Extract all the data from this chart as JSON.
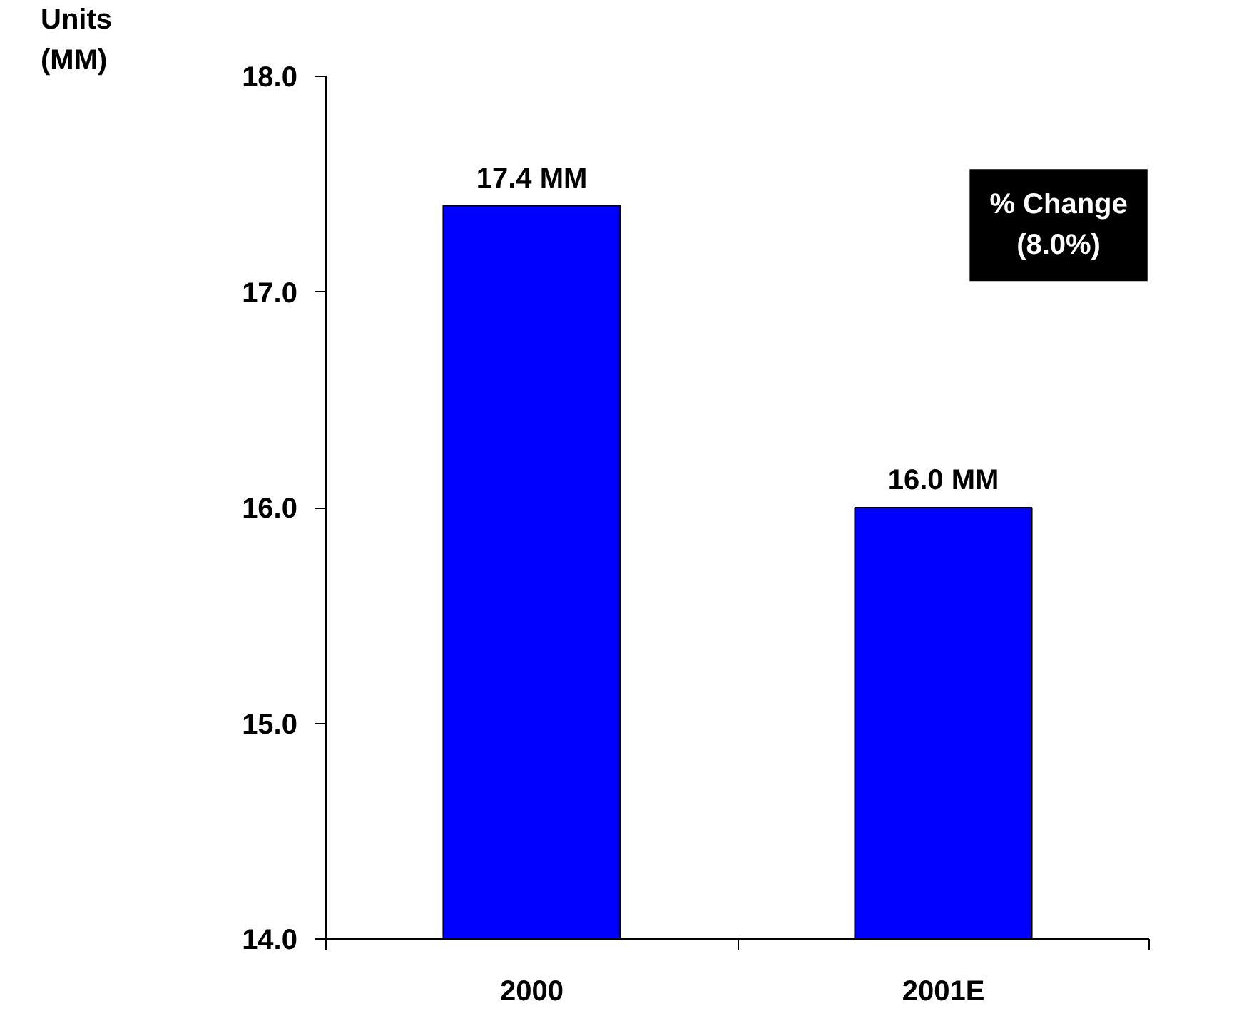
{
  "chart_data": {
    "type": "bar",
    "ylabel": "Units\n(MM)",
    "categories": [
      "2000",
      "2001E"
    ],
    "values": [
      17.4,
      16.0
    ],
    "color": "#0000ff",
    "value_labels": [
      "17.4 MM",
      "16.0 MM"
    ],
    "ylim": [
      14,
      18
    ],
    "yticks": [
      {
        "value": 14,
        "label": "14.0"
      },
      {
        "value": 15,
        "label": "15.0"
      },
      {
        "value": 16,
        "label": "16.0"
      },
      {
        "value": 17,
        "label": "17.0"
      },
      {
        "value": 18,
        "label": "18.0"
      }
    ],
    "grid": false,
    "annotations": [
      "% Change\n(8.0%)"
    ]
  }
}
